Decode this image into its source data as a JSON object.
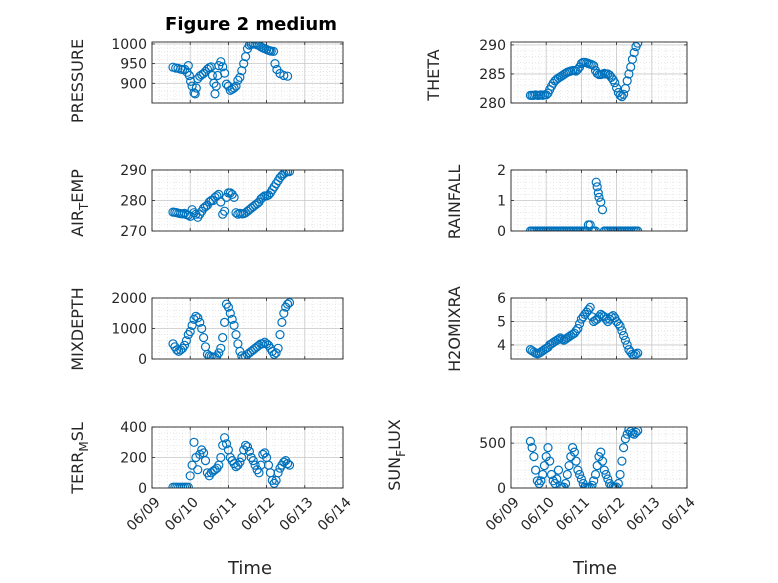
{
  "title": "Figure 2 medium",
  "colors": {
    "marker": "#0072bd",
    "axis": "#262626",
    "grid": "#d9d9d9"
  },
  "chart_data": [
    {
      "type": "scatter",
      "name": "PRESSURE",
      "ylabel": "PRESSURE",
      "ylim": [
        850,
        1005
      ],
      "yticks": [
        900,
        950,
        1000
      ],
      "ytick_labels": [
        "900",
        "950",
        "1000"
      ],
      "xlim": [
        0,
        5
      ],
      "xticks": [
        0,
        1,
        2,
        3,
        4,
        5
      ],
      "xtick_labels": [
        "06/09",
        "06/10",
        "06/11",
        "06/12",
        "06/13",
        "06/14"
      ],
      "xlabel": "Time",
      "x": [
        0.55,
        0.62,
        0.68,
        0.75,
        0.8,
        0.86,
        0.92,
        0.95,
        0.98,
        1.01,
        1.05,
        1.1,
        1.13,
        1.16,
        1.2,
        1.25,
        1.3,
        1.35,
        1.4,
        1.45,
        1.5,
        1.55,
        1.58,
        1.62,
        1.65,
        1.68,
        1.72,
        1.75,
        1.8,
        1.85,
        1.9,
        1.95,
        2.0,
        2.05,
        2.1,
        2.15,
        2.2,
        2.25,
        2.3,
        2.35,
        2.4,
        2.45,
        2.5,
        2.55,
        2.6,
        2.65,
        2.7,
        2.75,
        2.8,
        2.85,
        2.9,
        2.95,
        3.0,
        3.05,
        3.08,
        3.12,
        3.18,
        3.22,
        3.27,
        3.35,
        3.45,
        3.55
      ],
      "y": [
        941,
        939,
        938,
        936,
        935,
        935,
        928,
        945,
        920,
        905,
        893,
        876,
        873,
        888,
        912,
        918,
        922,
        925,
        930,
        936,
        940,
        942,
        920,
        900,
        873,
        893,
        920,
        945,
        955,
        942,
        926,
        898,
        893,
        882,
        885,
        888,
        893,
        908,
        915,
        932,
        950,
        968,
        988,
        997,
        999,
        1000,
        1000,
        998,
        996,
        993,
        990,
        988,
        986,
        984,
        983,
        982,
        981,
        950,
        935,
        925,
        920,
        918
      ]
    },
    {
      "type": "scatter",
      "name": "THETA",
      "ylabel": "THETA",
      "ylim": [
        280,
        290.5
      ],
      "yticks": [
        280,
        285,
        290
      ],
      "ytick_labels": [
        "280",
        "285",
        "290"
      ],
      "xlim": [
        0,
        5
      ],
      "xticks": [
        0,
        1,
        2,
        3,
        4,
        5
      ],
      "xtick_labels": [
        "06/09",
        "06/10",
        "06/11",
        "06/12",
        "06/13",
        "06/14"
      ],
      "xlabel": "Time",
      "x": [
        0.55,
        0.6,
        0.65,
        0.7,
        0.75,
        0.8,
        0.85,
        0.9,
        0.95,
        1.0,
        1.05,
        1.1,
        1.15,
        1.2,
        1.25,
        1.3,
        1.35,
        1.4,
        1.45,
        1.5,
        1.55,
        1.6,
        1.65,
        1.7,
        1.75,
        1.8,
        1.85,
        1.9,
        1.95,
        2.0,
        2.05,
        2.1,
        2.15,
        2.2,
        2.25,
        2.3,
        2.35,
        2.4,
        2.45,
        2.5,
        2.55,
        2.6,
        2.65,
        2.7,
        2.75,
        2.8,
        2.85,
        2.9,
        2.95,
        3.0,
        3.05,
        3.1,
        3.15,
        3.2,
        3.25,
        3.3,
        3.35,
        3.4,
        3.45,
        3.5,
        3.55,
        3.6
      ],
      "y": [
        281.3,
        281.3,
        281.3,
        281.4,
        281.3,
        281.3,
        281.4,
        281.3,
        281.4,
        281.4,
        281.7,
        282.3,
        282.9,
        283.4,
        283.8,
        284.1,
        284.3,
        284.5,
        284.7,
        284.9,
        285.1,
        285.3,
        285.4,
        285.5,
        285.6,
        285.6,
        285.5,
        285.8,
        286.2,
        286.8,
        287.0,
        287.0,
        286.9,
        286.8,
        286.7,
        286.6,
        286.4,
        285.6,
        285.1,
        284.9,
        284.9,
        285.0,
        285.1,
        285.0,
        285.0,
        284.8,
        284.4,
        284.0,
        283.5,
        282.6,
        281.8,
        281.3,
        281.1,
        281.5,
        282.5,
        283.8,
        285.0,
        286.2,
        287.5,
        288.7,
        289.7,
        290.3
      ]
    },
    {
      "type": "scatter",
      "name": "AIR_TEMP",
      "ylabel": "AIR_TEMP",
      "ylim": [
        270,
        290
      ],
      "yticks": [
        270,
        280,
        290
      ],
      "ytick_labels": [
        "270",
        "280",
        "290"
      ],
      "xlim": [
        0,
        5
      ],
      "xticks": [
        0,
        1,
        2,
        3,
        4,
        5
      ],
      "xtick_labels": [
        "06/09",
        "06/10",
        "06/11",
        "06/12",
        "06/13",
        "06/14"
      ],
      "xlabel": "Time",
      "x": [
        0.55,
        0.6,
        0.65,
        0.7,
        0.75,
        0.8,
        0.85,
        0.9,
        0.95,
        1.0,
        1.05,
        1.1,
        1.15,
        1.2,
        1.25,
        1.3,
        1.35,
        1.4,
        1.45,
        1.5,
        1.55,
        1.6,
        1.65,
        1.7,
        1.75,
        1.8,
        1.85,
        1.9,
        1.95,
        2.0,
        2.05,
        2.1,
        2.15,
        2.2,
        2.25,
        2.3,
        2.35,
        2.4,
        2.45,
        2.5,
        2.55,
        2.6,
        2.65,
        2.7,
        2.75,
        2.8,
        2.85,
        2.9,
        2.95,
        3.0,
        3.05,
        3.1,
        3.15,
        3.2,
        3.25,
        3.3,
        3.35,
        3.4,
        3.45,
        3.5,
        3.55,
        3.6
      ],
      "y": [
        276.2,
        276.1,
        276.0,
        275.8,
        275.7,
        275.6,
        275.8,
        275.4,
        275.2,
        274.8,
        277.0,
        276.0,
        275.5,
        274.5,
        275.5,
        276.5,
        277.5,
        278.0,
        278.5,
        279.5,
        280.0,
        280.0,
        281.0,
        281.5,
        282.0,
        279.5,
        275.5,
        276.5,
        281.0,
        282.5,
        282.5,
        282.0,
        281.0,
        276.0,
        275.5,
        275.8,
        275.6,
        275.7,
        276.0,
        276.5,
        277.0,
        277.5,
        278.0,
        278.5,
        279.0,
        279.5,
        280.5,
        281.0,
        281.5,
        281.5,
        281.8,
        282.5,
        283.5,
        284.5,
        285.5,
        286.5,
        287.5,
        288.2,
        288.8,
        289.2,
        289.4,
        289.5
      ]
    },
    {
      "type": "scatter",
      "name": "RAINFALL",
      "ylabel": "RAINFALL",
      "ylim": [
        0,
        2
      ],
      "yticks": [
        0,
        1,
        2
      ],
      "ytick_labels": [
        "0",
        "1",
        "2"
      ],
      "xlim": [
        0,
        5
      ],
      "xticks": [
        0,
        1,
        2,
        3,
        4,
        5
      ],
      "xtick_labels": [
        "06/09",
        "06/10",
        "06/11",
        "06/12",
        "06/13",
        "06/14"
      ],
      "xlabel": "Time",
      "x": [
        0.55,
        0.6,
        0.65,
        0.7,
        0.75,
        0.8,
        0.85,
        0.9,
        0.95,
        1.0,
        1.05,
        1.1,
        1.15,
        1.2,
        1.25,
        1.3,
        1.35,
        1.4,
        1.45,
        1.5,
        1.55,
        1.6,
        1.65,
        1.7,
        1.75,
        1.8,
        1.85,
        1.9,
        1.95,
        2.0,
        2.05,
        2.1,
        2.15,
        2.2,
        2.25,
        2.3,
        2.35,
        2.4,
        2.42,
        2.45,
        2.48,
        2.5,
        2.55,
        2.6,
        2.65,
        2.7,
        2.75,
        2.8,
        2.85,
        2.9,
        2.95,
        3.0,
        3.05,
        3.1,
        3.15,
        3.2,
        3.25,
        3.3,
        3.35,
        3.4,
        3.45,
        3.5,
        3.55,
        3.6
      ],
      "y": [
        0,
        0,
        0,
        0,
        0,
        0,
        0,
        0,
        0,
        0,
        0,
        0,
        0,
        0,
        0,
        0,
        0,
        0,
        0,
        0,
        0,
        0,
        0,
        0,
        0,
        0,
        0,
        0,
        0,
        0,
        0,
        0,
        0,
        0.2,
        0.2,
        0,
        0,
        0,
        1.6,
        1.45,
        1.25,
        1.1,
        0.95,
        0.7,
        0,
        0,
        0,
        0,
        0,
        0,
        0,
        0,
        0,
        0,
        0,
        0,
        0,
        0,
        0,
        0,
        0,
        0,
        0,
        0
      ]
    },
    {
      "type": "scatter",
      "name": "MIXDEPTH",
      "ylabel": "MIXDEPTH",
      "ylim": [
        0,
        2000
      ],
      "yticks": [
        0,
        1000,
        2000
      ],
      "ytick_labels": [
        "0",
        "1000",
        "2000"
      ],
      "xlim": [
        0,
        5
      ],
      "xticks": [
        0,
        1,
        2,
        3,
        4,
        5
      ],
      "xtick_labels": [
        "06/09",
        "06/10",
        "06/11",
        "06/12",
        "06/13",
        "06/14"
      ],
      "xlabel": "Time",
      "x": [
        0.55,
        0.6,
        0.65,
        0.7,
        0.75,
        0.8,
        0.85,
        0.9,
        0.95,
        1.0,
        1.05,
        1.1,
        1.15,
        1.2,
        1.25,
        1.3,
        1.35,
        1.4,
        1.45,
        1.5,
        1.55,
        1.6,
        1.65,
        1.7,
        1.75,
        1.8,
        1.85,
        1.9,
        1.95,
        2.0,
        2.05,
        2.1,
        2.15,
        2.2,
        2.25,
        2.3,
        2.35,
        2.4,
        2.45,
        2.5,
        2.55,
        2.6,
        2.65,
        2.7,
        2.75,
        2.8,
        2.85,
        2.9,
        2.95,
        3.0,
        3.05,
        3.1,
        3.15,
        3.2,
        3.25,
        3.3,
        3.35,
        3.4,
        3.45,
        3.5,
        3.55,
        3.6
      ],
      "y": [
        500,
        400,
        300,
        250,
        300,
        350,
        450,
        600,
        800,
        900,
        1100,
        1300,
        1400,
        1350,
        1200,
        1000,
        700,
        400,
        150,
        100,
        80,
        60,
        60,
        100,
        200,
        350,
        700,
        1200,
        1800,
        1700,
        1500,
        1300,
        1100,
        800,
        500,
        250,
        100,
        50,
        80,
        150,
        200,
        250,
        300,
        350,
        400,
        450,
        500,
        500,
        550,
        500,
        450,
        350,
        250,
        150,
        200,
        350,
        800,
        1200,
        1500,
        1700,
        1800,
        1850
      ]
    },
    {
      "type": "scatter",
      "name": "H2OMIXRA",
      "ylabel": "H2OMIXRA",
      "ylim": [
        3.4,
        6
      ],
      "yticks": [
        4,
        5,
        6
      ],
      "ytick_labels": [
        "4",
        "5",
        "6"
      ],
      "xlim": [
        0,
        5
      ],
      "xticks": [
        0,
        1,
        2,
        3,
        4,
        5
      ],
      "xtick_labels": [
        "06/09",
        "06/10",
        "06/11",
        "06/12",
        "06/13",
        "06/14"
      ],
      "xlabel": "Time",
      "x": [
        0.55,
        0.6,
        0.65,
        0.7,
        0.75,
        0.8,
        0.85,
        0.9,
        0.95,
        1.0,
        1.05,
        1.1,
        1.15,
        1.2,
        1.25,
        1.3,
        1.35,
        1.4,
        1.45,
        1.5,
        1.55,
        1.6,
        1.65,
        1.7,
        1.75,
        1.8,
        1.85,
        1.9,
        1.95,
        2.0,
        2.05,
        2.1,
        2.15,
        2.2,
        2.25,
        2.3,
        2.35,
        2.4,
        2.45,
        2.5,
        2.55,
        2.6,
        2.65,
        2.7,
        2.75,
        2.8,
        2.85,
        2.9,
        2.95,
        3.0,
        3.05,
        3.1,
        3.15,
        3.2,
        3.25,
        3.3,
        3.35,
        3.4,
        3.45,
        3.5,
        3.55,
        3.6
      ],
      "y": [
        3.8,
        3.75,
        3.7,
        3.65,
        3.62,
        3.65,
        3.7,
        3.75,
        3.8,
        3.85,
        3.9,
        4.0,
        4.05,
        4.1,
        4.15,
        4.2,
        4.25,
        4.3,
        4.25,
        4.2,
        4.25,
        4.3,
        4.35,
        4.4,
        4.45,
        4.5,
        4.6,
        4.7,
        4.9,
        5.1,
        5.2,
        5.3,
        5.4,
        5.5,
        5.6,
        5.2,
        5.0,
        5.05,
        5.1,
        5.2,
        5.3,
        5.25,
        5.2,
        5.1,
        5.0,
        5.1,
        5.2,
        5.25,
        5.15,
        5.0,
        4.9,
        4.8,
        4.6,
        4.4,
        4.2,
        4.0,
        3.8,
        3.7,
        3.6,
        3.55,
        3.6,
        3.65
      ]
    },
    {
      "type": "scatter",
      "name": "TERR_MSL",
      "ylabel": "TERR_MSL",
      "ylim": [
        0,
        400
      ],
      "yticks": [
        0,
        200,
        400
      ],
      "ytick_labels": [
        "0",
        "200",
        "400"
      ],
      "xlim": [
        0,
        5
      ],
      "xticks": [
        0,
        1,
        2,
        3,
        4,
        5
      ],
      "xtick_labels": [
        "06/09",
        "06/10",
        "06/11",
        "06/12",
        "06/13",
        "06/14"
      ],
      "xlabel": "Time",
      "x": [
        0.55,
        0.6,
        0.65,
        0.7,
        0.75,
        0.8,
        0.85,
        0.9,
        0.95,
        1.0,
        1.05,
        1.1,
        1.15,
        1.2,
        1.25,
        1.3,
        1.35,
        1.4,
        1.45,
        1.5,
        1.55,
        1.6,
        1.65,
        1.7,
        1.75,
        1.8,
        1.85,
        1.9,
        1.95,
        2.0,
        2.05,
        2.1,
        2.15,
        2.2,
        2.25,
        2.3,
        2.35,
        2.4,
        2.45,
        2.5,
        2.55,
        2.6,
        2.65,
        2.7,
        2.75,
        2.8,
        2.85,
        2.9,
        2.95,
        3.0,
        3.05,
        3.1,
        3.15,
        3.2,
        3.25,
        3.3,
        3.35,
        3.4,
        3.45,
        3.5,
        3.55,
        3.6
      ],
      "y": [
        5,
        5,
        5,
        5,
        5,
        5,
        5,
        5,
        5,
        80,
        150,
        300,
        200,
        120,
        220,
        250,
        230,
        180,
        100,
        80,
        100,
        110,
        120,
        130,
        150,
        200,
        280,
        330,
        290,
        250,
        200,
        180,
        160,
        140,
        150,
        170,
        200,
        250,
        280,
        270,
        240,
        200,
        180,
        150,
        120,
        100,
        150,
        220,
        230,
        200,
        150,
        100,
        50,
        30,
        50,
        100,
        130,
        150,
        170,
        180,
        160,
        150
      ]
    },
    {
      "type": "scatter",
      "name": "SUN_FLUX",
      "ylabel": "SUN_FLUX",
      "ylim": [
        0,
        680
      ],
      "yticks": [
        0,
        500
      ],
      "ytick_labels": [
        "0",
        "500"
      ],
      "xlim": [
        0,
        5
      ],
      "xticks": [
        0,
        1,
        2,
        3,
        4,
        5
      ],
      "xtick_labels": [
        "06/09",
        "06/10",
        "06/11",
        "06/12",
        "06/13",
        "06/14"
      ],
      "xlabel": "Time",
      "x": [
        0.55,
        0.6,
        0.65,
        0.7,
        0.75,
        0.8,
        0.85,
        0.9,
        0.95,
        1.0,
        1.05,
        1.1,
        1.15,
        1.2,
        1.25,
        1.3,
        1.35,
        1.4,
        1.45,
        1.5,
        1.55,
        1.6,
        1.65,
        1.7,
        1.75,
        1.8,
        1.85,
        1.9,
        1.95,
        2.0,
        2.05,
        2.1,
        2.15,
        2.2,
        2.25,
        2.3,
        2.35,
        2.4,
        2.45,
        2.5,
        2.55,
        2.6,
        2.65,
        2.7,
        2.75,
        2.8,
        2.85,
        2.9,
        2.95,
        3.0,
        3.05,
        3.1,
        3.15,
        3.2,
        3.25,
        3.3,
        3.35,
        3.4,
        3.45,
        3.5,
        3.55,
        3.6
      ],
      "y": [
        520,
        450,
        350,
        200,
        80,
        50,
        80,
        150,
        250,
        350,
        450,
        300,
        150,
        80,
        50,
        100,
        200,
        20,
        5,
        10,
        50,
        150,
        250,
        350,
        450,
        400,
        300,
        200,
        150,
        100,
        50,
        10,
        5,
        5,
        10,
        30,
        80,
        150,
        250,
        350,
        400,
        300,
        200,
        150,
        100,
        50,
        20,
        10,
        5,
        10,
        50,
        150,
        300,
        450,
        550,
        600,
        650,
        630,
        610,
        600,
        620,
        640
      ]
    }
  ],
  "labels": {
    "xlabel_left": "Time",
    "xlabel_right": "Time",
    "ylab_pressure": "PRESSURE",
    "ylab_theta": "THETA",
    "ylab_airtemp_a": "AIR",
    "ylab_airtemp_sub": "T",
    "ylab_airtemp_b": "EMP",
    "ylab_rainfall": "RAINFALL",
    "ylab_mixdepth": "MIXDEPTH",
    "ylab_h2o": "H2OMIXRA",
    "ylab_terr_a": "TERR",
    "ylab_terr_sub": "M",
    "ylab_terr_b": "SL",
    "ylab_sun_a": "SUN",
    "ylab_sun_sub": "F",
    "ylab_sun_b": "LUX"
  }
}
